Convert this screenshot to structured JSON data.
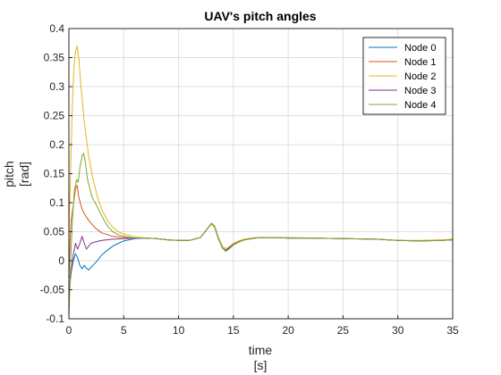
{
  "chart_data": {
    "type": "line",
    "title": "UAV's pitch angles",
    "xlabel_line1": "time",
    "xlabel_line2": "[s]",
    "ylabel_line1": "pitch",
    "ylabel_line2": "[rad]",
    "xlim": [
      0,
      35
    ],
    "ylim": [
      -0.1,
      0.4
    ],
    "xticks": [
      0,
      5,
      10,
      15,
      20,
      25,
      30,
      35
    ],
    "yticks": [
      -0.1,
      -0.05,
      0,
      0.05,
      0.1,
      0.15,
      0.2,
      0.25,
      0.3,
      0.35,
      0.4
    ],
    "grid": true,
    "legend_position": "top-right",
    "series": [
      {
        "name": "Node 0",
        "color": "#0072BD",
        "points": [
          [
            0,
            -0.03
          ],
          [
            0.2,
            -0.02
          ],
          [
            0.4,
            0.0
          ],
          [
            0.6,
            0.012
          ],
          [
            0.8,
            0.005
          ],
          [
            1.0,
            -0.008
          ],
          [
            1.2,
            -0.014
          ],
          [
            1.4,
            -0.008
          ],
          [
            1.6,
            -0.013
          ],
          [
            1.8,
            -0.016
          ],
          [
            2.0,
            -0.012
          ],
          [
            2.5,
            -0.002
          ],
          [
            3,
            0.01
          ],
          [
            3.5,
            0.018
          ],
          [
            4,
            0.025
          ],
          [
            4.5,
            0.03
          ],
          [
            5,
            0.034
          ],
          [
            6,
            0.038
          ],
          [
            7,
            0.039
          ],
          [
            8,
            0.038
          ],
          [
            9,
            0.036
          ],
          [
            10,
            0.035
          ],
          [
            11,
            0.035
          ],
          [
            12,
            0.04
          ],
          [
            12.5,
            0.052
          ],
          [
            13,
            0.064
          ],
          [
            13.3,
            0.058
          ],
          [
            13.6,
            0.04
          ],
          [
            14,
            0.022
          ],
          [
            14.3,
            0.018
          ],
          [
            14.6,
            0.022
          ],
          [
            15,
            0.028
          ],
          [
            15.5,
            0.033
          ],
          [
            16,
            0.036
          ],
          [
            17,
            0.039
          ],
          [
            18,
            0.04
          ],
          [
            20,
            0.039
          ],
          [
            22,
            0.039
          ],
          [
            25,
            0.038
          ],
          [
            28,
            0.037
          ],
          [
            30,
            0.035
          ],
          [
            32,
            0.034
          ],
          [
            34,
            0.035
          ],
          [
            35,
            0.036
          ]
        ]
      },
      {
        "name": "Node 1",
        "color": "#D95319",
        "points": [
          [
            0,
            -0.03
          ],
          [
            0.1,
            0.03
          ],
          [
            0.2,
            0.07
          ],
          [
            0.4,
            0.095
          ],
          [
            0.6,
            0.125
          ],
          [
            0.75,
            0.13
          ],
          [
            0.9,
            0.11
          ],
          [
            1.1,
            0.095
          ],
          [
            1.3,
            0.085
          ],
          [
            1.6,
            0.075
          ],
          [
            2.0,
            0.065
          ],
          [
            2.5,
            0.055
          ],
          [
            3,
            0.048
          ],
          [
            4,
            0.042
          ],
          [
            5,
            0.04
          ],
          [
            6,
            0.039
          ],
          [
            7,
            0.039
          ],
          [
            8,
            0.038
          ],
          [
            9,
            0.036
          ],
          [
            10,
            0.035
          ],
          [
            11,
            0.035
          ],
          [
            12,
            0.04
          ],
          [
            12.5,
            0.052
          ],
          [
            13,
            0.064
          ],
          [
            13.3,
            0.058
          ],
          [
            13.6,
            0.04
          ],
          [
            14,
            0.022
          ],
          [
            14.3,
            0.018
          ],
          [
            14.6,
            0.022
          ],
          [
            15,
            0.028
          ],
          [
            15.5,
            0.033
          ],
          [
            16,
            0.036
          ],
          [
            17,
            0.039
          ],
          [
            18,
            0.04
          ],
          [
            20,
            0.039
          ],
          [
            22,
            0.039
          ],
          [
            25,
            0.038
          ],
          [
            28,
            0.037
          ],
          [
            30,
            0.035
          ],
          [
            32,
            0.034
          ],
          [
            34,
            0.035
          ],
          [
            35,
            0.036
          ]
        ]
      },
      {
        "name": "Node 2",
        "color": "#EDB120",
        "points": [
          [
            0,
            0.05
          ],
          [
            0.15,
            0.15
          ],
          [
            0.3,
            0.26
          ],
          [
            0.45,
            0.33
          ],
          [
            0.6,
            0.36
          ],
          [
            0.75,
            0.37
          ],
          [
            0.9,
            0.35
          ],
          [
            1.1,
            0.3
          ],
          [
            1.4,
            0.24
          ],
          [
            1.8,
            0.18
          ],
          [
            2.2,
            0.14
          ],
          [
            2.6,
            0.11
          ],
          [
            3,
            0.088
          ],
          [
            3.5,
            0.07
          ],
          [
            4,
            0.058
          ],
          [
            4.5,
            0.05
          ],
          [
            5,
            0.046
          ],
          [
            6,
            0.041
          ],
          [
            7,
            0.039
          ],
          [
            8,
            0.038
          ],
          [
            9,
            0.036
          ],
          [
            10,
            0.035
          ],
          [
            11,
            0.035
          ],
          [
            12,
            0.04
          ],
          [
            12.5,
            0.052
          ],
          [
            13,
            0.065
          ],
          [
            13.3,
            0.06
          ],
          [
            13.6,
            0.042
          ],
          [
            14,
            0.025
          ],
          [
            14.3,
            0.021
          ],
          [
            14.6,
            0.024
          ],
          [
            15,
            0.03
          ],
          [
            15.5,
            0.034
          ],
          [
            16,
            0.037
          ],
          [
            17,
            0.04
          ],
          [
            18,
            0.04
          ],
          [
            20,
            0.04
          ],
          [
            22,
            0.039
          ],
          [
            25,
            0.038
          ],
          [
            28,
            0.037
          ],
          [
            30,
            0.035
          ],
          [
            32,
            0.035
          ],
          [
            34,
            0.036
          ],
          [
            35,
            0.037
          ]
        ]
      },
      {
        "name": "Node 3",
        "color": "#7E2F8E",
        "points": [
          [
            0,
            -0.06
          ],
          [
            0.2,
            -0.02
          ],
          [
            0.4,
            0.01
          ],
          [
            0.6,
            0.03
          ],
          [
            0.8,
            0.02
          ],
          [
            1.0,
            0.03
          ],
          [
            1.2,
            0.042
          ],
          [
            1.4,
            0.03
          ],
          [
            1.6,
            0.02
          ],
          [
            1.8,
            0.025
          ],
          [
            2.0,
            0.03
          ],
          [
            2.5,
            0.033
          ],
          [
            3,
            0.035
          ],
          [
            4,
            0.037
          ],
          [
            5,
            0.038
          ],
          [
            6,
            0.039
          ],
          [
            7,
            0.039
          ],
          [
            8,
            0.038
          ],
          [
            9,
            0.036
          ],
          [
            10,
            0.035
          ],
          [
            11,
            0.035
          ],
          [
            12,
            0.04
          ],
          [
            12.5,
            0.052
          ],
          [
            13,
            0.064
          ],
          [
            13.3,
            0.058
          ],
          [
            13.6,
            0.04
          ],
          [
            14,
            0.022
          ],
          [
            14.3,
            0.018
          ],
          [
            14.6,
            0.022
          ],
          [
            15,
            0.028
          ],
          [
            15.5,
            0.033
          ],
          [
            16,
            0.036
          ],
          [
            17,
            0.039
          ],
          [
            18,
            0.04
          ],
          [
            20,
            0.039
          ],
          [
            22,
            0.039
          ],
          [
            25,
            0.038
          ],
          [
            28,
            0.037
          ],
          [
            30,
            0.035
          ],
          [
            32,
            0.034
          ],
          [
            34,
            0.035
          ],
          [
            35,
            0.036
          ]
        ]
      },
      {
        "name": "Node 4",
        "color": "#77AC30",
        "points": [
          [
            0,
            -0.1
          ],
          [
            0.1,
            -0.04
          ],
          [
            0.2,
            0.02
          ],
          [
            0.35,
            0.08
          ],
          [
            0.5,
            0.12
          ],
          [
            0.7,
            0.14
          ],
          [
            0.85,
            0.135
          ],
          [
            1.0,
            0.16
          ],
          [
            1.2,
            0.18
          ],
          [
            1.35,
            0.185
          ],
          [
            1.5,
            0.17
          ],
          [
            1.7,
            0.14
          ],
          [
            1.9,
            0.125
          ],
          [
            2.1,
            0.11
          ],
          [
            2.4,
            0.1
          ],
          [
            2.8,
            0.085
          ],
          [
            3.2,
            0.07
          ],
          [
            3.6,
            0.058
          ],
          [
            4,
            0.05
          ],
          [
            4.5,
            0.045
          ],
          [
            5,
            0.042
          ],
          [
            6,
            0.039
          ],
          [
            7,
            0.039
          ],
          [
            8,
            0.038
          ],
          [
            9,
            0.036
          ],
          [
            10,
            0.035
          ],
          [
            11,
            0.035
          ],
          [
            12,
            0.04
          ],
          [
            12.5,
            0.052
          ],
          [
            13,
            0.064
          ],
          [
            13.3,
            0.058
          ],
          [
            13.6,
            0.04
          ],
          [
            14,
            0.022
          ],
          [
            14.3,
            0.016
          ],
          [
            14.6,
            0.02
          ],
          [
            15,
            0.027
          ],
          [
            15.5,
            0.032
          ],
          [
            16,
            0.036
          ],
          [
            17,
            0.039
          ],
          [
            18,
            0.04
          ],
          [
            20,
            0.039
          ],
          [
            22,
            0.039
          ],
          [
            25,
            0.038
          ],
          [
            28,
            0.037
          ],
          [
            30,
            0.035
          ],
          [
            32,
            0.034
          ],
          [
            34,
            0.035
          ],
          [
            35,
            0.036
          ]
        ]
      }
    ]
  }
}
